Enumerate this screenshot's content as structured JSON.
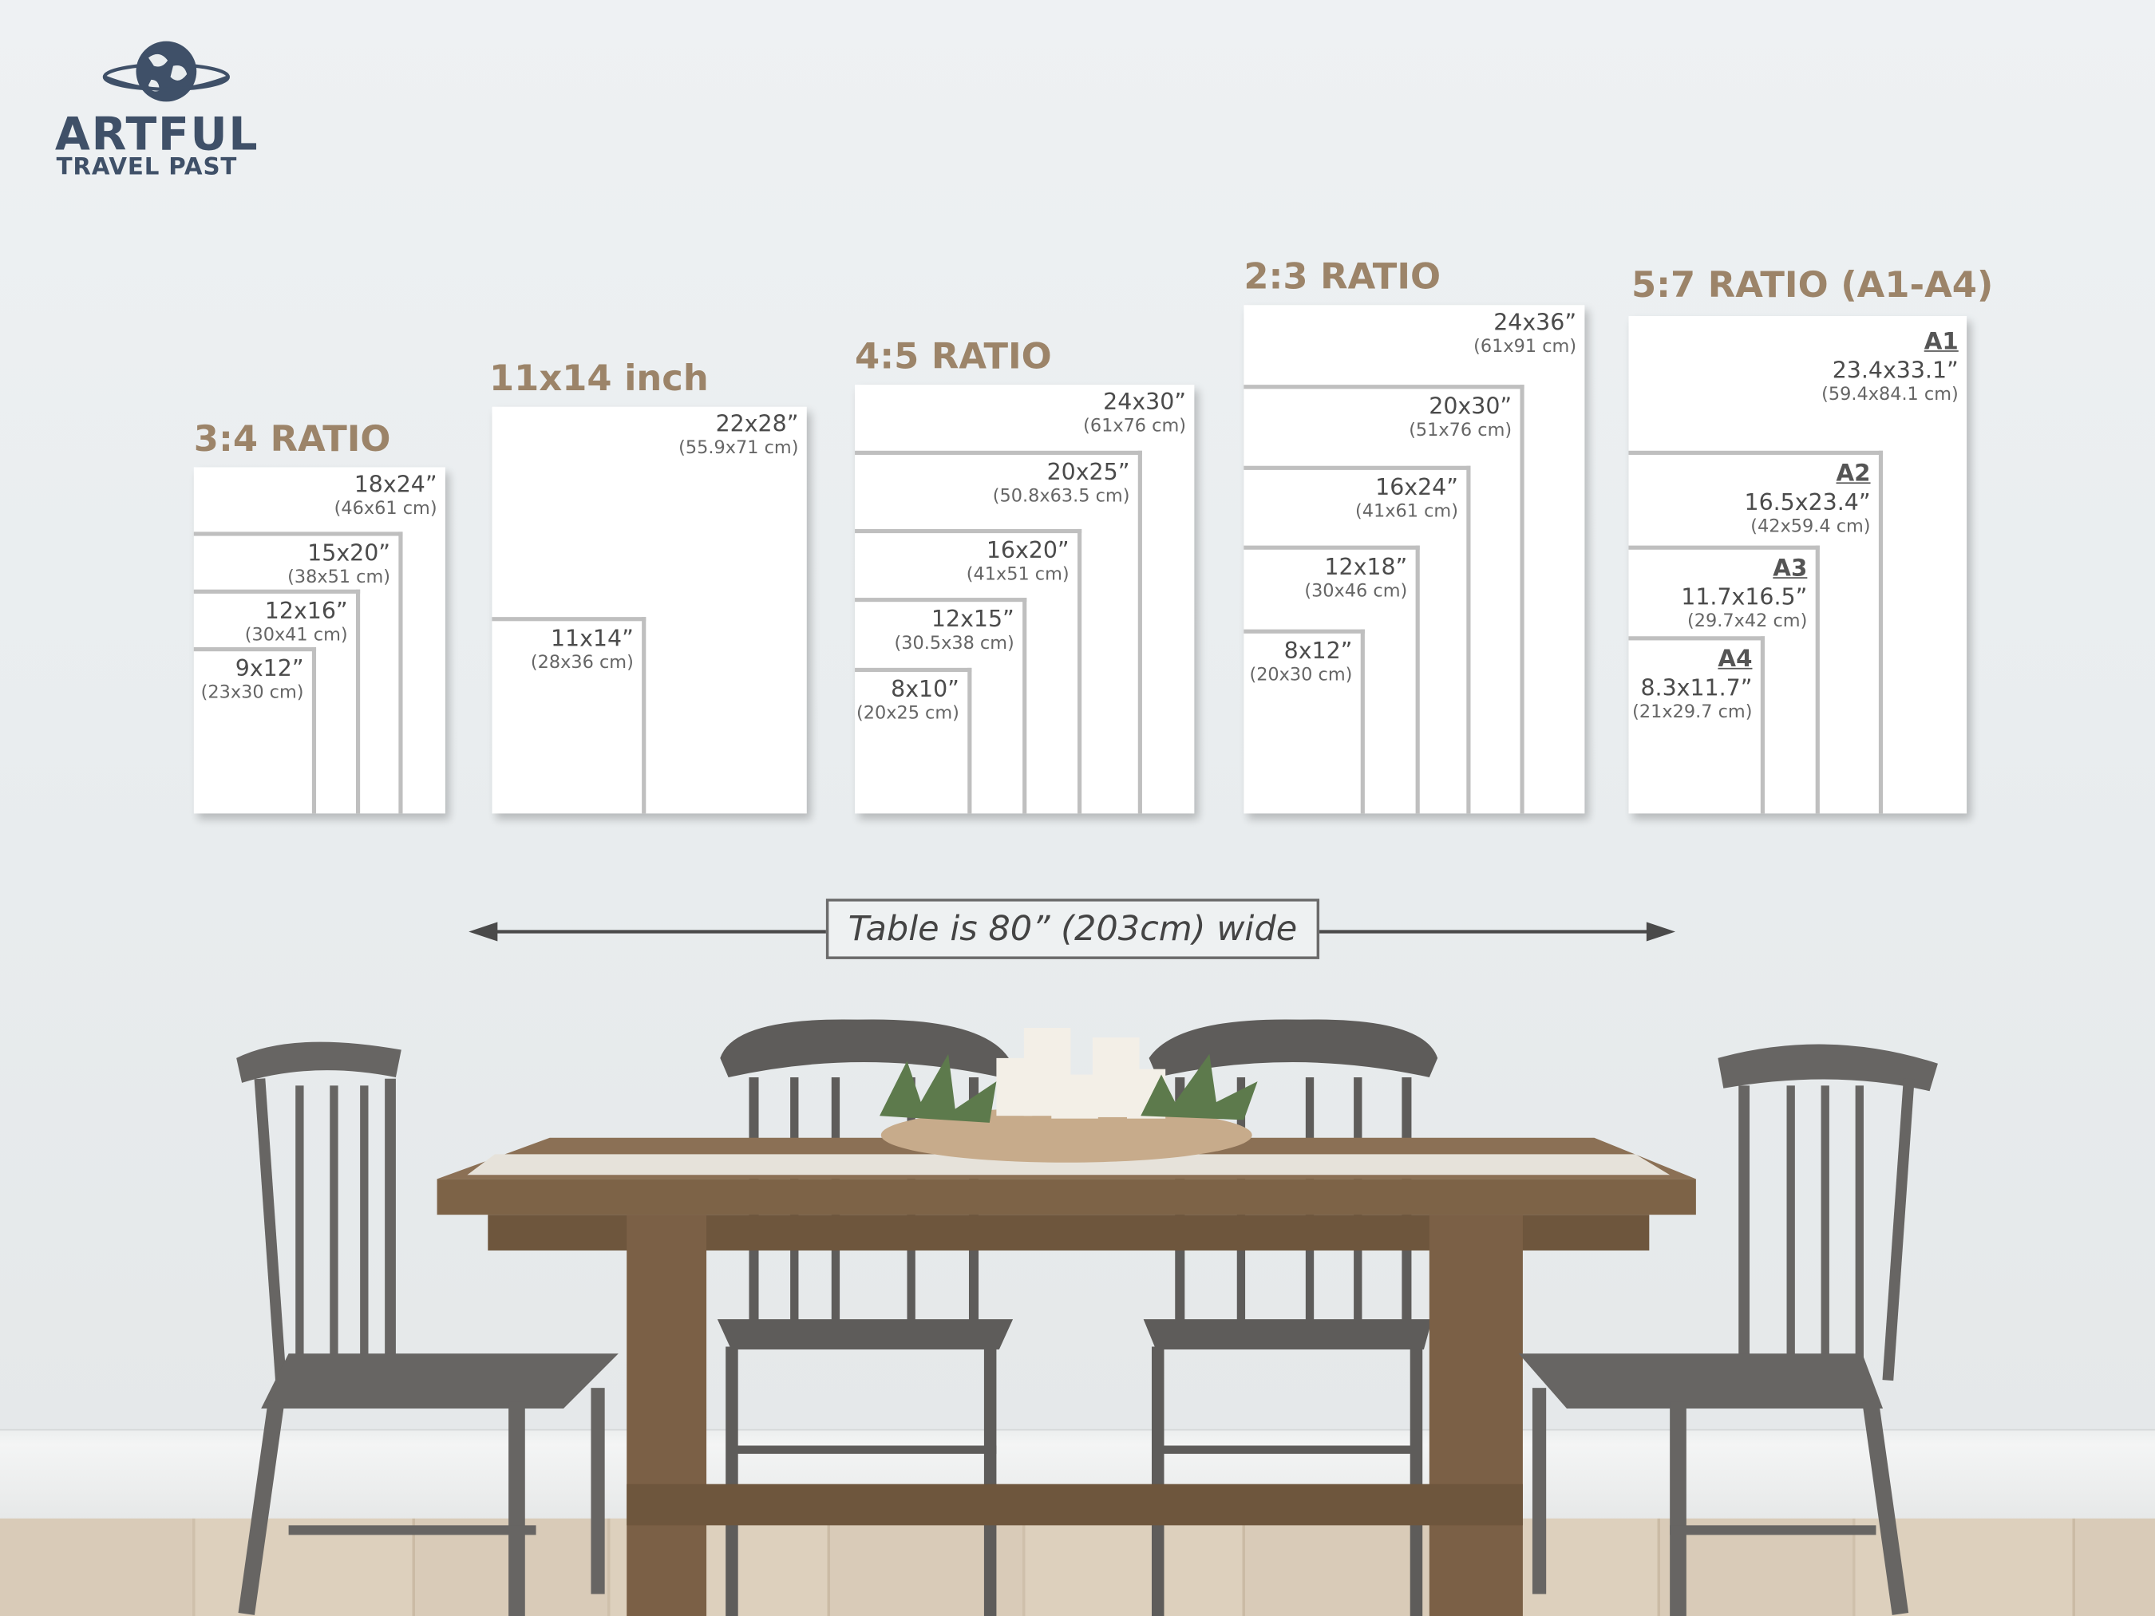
{
  "logo": {
    "name": "ARTFUL",
    "tagline": "TRAVEL PAST",
    "icon": "globe-icon",
    "color": "#3f5068"
  },
  "accent_color": "#9c8469",
  "panels": [
    {
      "title": "3:4 RATIO",
      "sizes": [
        {
          "inches": "18x24”",
          "cm": "(46x61 cm)"
        },
        {
          "inches": "15x20”",
          "cm": "(38x51 cm)"
        },
        {
          "inches": "12x16”",
          "cm": "(30x41 cm)"
        },
        {
          "inches": "9x12”",
          "cm": "(23x30 cm)"
        }
      ]
    },
    {
      "title": "11x14 inch",
      "sizes": [
        {
          "inches": "22x28”",
          "cm": "(55.9x71 cm)"
        },
        {
          "inches": "11x14”",
          "cm": "(28x36 cm)"
        }
      ]
    },
    {
      "title": "4:5 RATIO",
      "sizes": [
        {
          "inches": "24x30”",
          "cm": "(61x76 cm)"
        },
        {
          "inches": "20x25”",
          "cm": "(50.8x63.5 cm)"
        },
        {
          "inches": "16x20”",
          "cm": "(41x51 cm)"
        },
        {
          "inches": "12x15”",
          "cm": "(30.5x38 cm)"
        },
        {
          "inches": "8x10”",
          "cm": "(20x25 cm)"
        }
      ]
    },
    {
      "title": "2:3 RATIO",
      "sizes": [
        {
          "inches": "24x36”",
          "cm": "(61x91 cm)"
        },
        {
          "inches": "20x30”",
          "cm": "(51x76 cm)"
        },
        {
          "inches": "16x24”",
          "cm": "(41x61 cm)"
        },
        {
          "inches": "12x18”",
          "cm": "(30x46 cm)"
        },
        {
          "inches": "8x12”",
          "cm": "(20x30 cm)"
        }
      ]
    },
    {
      "title": "5:7 RATIO (A1-A4)",
      "sizes": [
        {
          "name": "A1",
          "inches": "23.4x33.1”",
          "cm": "(59.4x84.1 cm)"
        },
        {
          "name": "A2",
          "inches": "16.5x23.4”",
          "cm": "(42x59.4 cm)"
        },
        {
          "name": "A3",
          "inches": "11.7x16.5”",
          "cm": "(29.7x42 cm)"
        },
        {
          "name": "A4",
          "inches": "8.3x11.7”",
          "cm": "(21x29.7 cm)"
        }
      ]
    }
  ],
  "table_label": "Table is 80” (203cm) wide"
}
